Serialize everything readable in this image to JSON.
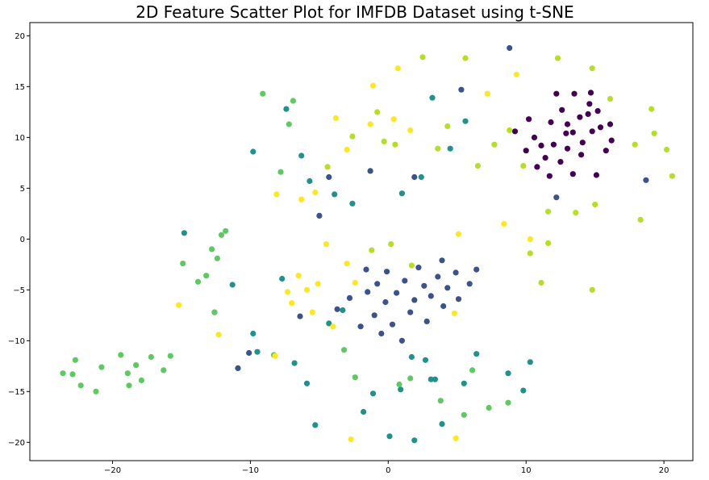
{
  "chart_data": {
    "type": "scatter",
    "title": "2D Feature Scatter Plot for IMFDB Dataset using t-SNE",
    "xlabel": "",
    "ylabel": "",
    "xlim": [
      -26,
      22.1
    ],
    "ylim": [
      -21.8,
      21.3
    ],
    "x_ticks": [
      -20,
      -10,
      0,
      10,
      20
    ],
    "y_ticks": [
      -20,
      -15,
      -10,
      -5,
      0,
      5,
      10,
      15,
      20
    ],
    "grid": false,
    "legend": "none",
    "series": [
      {
        "color": "#440154",
        "points": [
          [
            9.2,
            10.6
          ],
          [
            10.2,
            11.8
          ],
          [
            10.6,
            10.0
          ],
          [
            11.1,
            9.2
          ],
          [
            11.4,
            8.0
          ],
          [
            12.2,
            14.3
          ],
          [
            12.6,
            12.7
          ],
          [
            13.0,
            11.3
          ],
          [
            13.4,
            10.5
          ],
          [
            13.5,
            14.3
          ],
          [
            14.1,
            9.5
          ],
          [
            14.5,
            12.3
          ],
          [
            14.7,
            14.4
          ],
          [
            14.8,
            10.6
          ],
          [
            15.2,
            12.6
          ],
          [
            15.4,
            11.0
          ],
          [
            15.8,
            8.7
          ],
          [
            16.2,
            9.7
          ],
          [
            10.0,
            8.7
          ],
          [
            10.8,
            7.1
          ],
          [
            11.7,
            6.2
          ],
          [
            12.5,
            7.6
          ],
          [
            13.4,
            6.4
          ],
          [
            14.0,
            8.3
          ],
          [
            15.1,
            6.3
          ],
          [
            16.1,
            11.3
          ],
          [
            12.0,
            9.3
          ],
          [
            13.0,
            8.9
          ],
          [
            13.9,
            12.0
          ],
          [
            14.6,
            13.3
          ],
          [
            11.8,
            11.5
          ],
          [
            12.9,
            10.4
          ]
        ]
      },
      {
        "color": "#3b528b",
        "points": [
          [
            -1.5,
            -5.2
          ],
          [
            -0.8,
            -4.4
          ],
          [
            -0.2,
            -6.2
          ],
          [
            0.6,
            -5.3
          ],
          [
            1.2,
            -4.1
          ],
          [
            1.9,
            -6.0
          ],
          [
            2.6,
            -4.6
          ],
          [
            3.1,
            -5.6
          ],
          [
            3.6,
            -3.7
          ],
          [
            4.3,
            -4.8
          ],
          [
            -1.0,
            -7.5
          ],
          [
            0.3,
            -8.4
          ],
          [
            1.6,
            -7.2
          ],
          [
            2.8,
            -8.1
          ],
          [
            4.0,
            -6.6
          ],
          [
            5.1,
            -5.9
          ],
          [
            5.9,
            -4.4
          ],
          [
            -2.0,
            -8.6
          ],
          [
            -0.5,
            -9.3
          ],
          [
            1.0,
            -10.0
          ],
          [
            -2.8,
            -5.8
          ],
          [
            -0.1,
            -3.2
          ],
          [
            2.2,
            -2.8
          ],
          [
            3.9,
            -2.1
          ],
          [
            -4.3,
            6.1
          ],
          [
            -5.0,
            2.3
          ],
          [
            -1.3,
            6.7
          ],
          [
            1.9,
            6.1
          ],
          [
            5.3,
            14.7
          ],
          [
            12.2,
            4.1
          ],
          [
            18.7,
            5.8
          ],
          [
            8.8,
            18.8
          ],
          [
            -10.9,
            -12.7
          ],
          [
            -10.1,
            -11.2
          ],
          [
            -6.4,
            -7.6
          ],
          [
            -3.7,
            -6.9
          ],
          [
            -1.6,
            -3.0
          ],
          [
            4.9,
            -3.3
          ],
          [
            6.4,
            -3.0
          ]
        ]
      },
      {
        "color": "#21918c",
        "points": [
          [
            -9.5,
            -11.1
          ],
          [
            -7.7,
            -3.9
          ],
          [
            -5.9,
            -14.2
          ],
          [
            -4.3,
            -8.3
          ],
          [
            -3.3,
            -7.0
          ],
          [
            -1.1,
            -15.2
          ],
          [
            0.9,
            -14.8
          ],
          [
            1.7,
            -11.6
          ],
          [
            3.1,
            -13.8
          ],
          [
            3.9,
            -18.2
          ],
          [
            5.5,
            -14.2
          ],
          [
            6.4,
            -11.3
          ],
          [
            8.7,
            -13.2
          ],
          [
            9.8,
            -14.9
          ],
          [
            10.3,
            -12.1
          ],
          [
            -9.8,
            8.6
          ],
          [
            -7.4,
            12.8
          ],
          [
            -6.3,
            8.2
          ],
          [
            -5.7,
            5.7
          ],
          [
            -3.9,
            4.4
          ],
          [
            -2.6,
            3.5
          ],
          [
            1.0,
            4.5
          ],
          [
            2.4,
            6.1
          ],
          [
            3.2,
            13.9
          ],
          [
            4.5,
            8.9
          ],
          [
            5.6,
            11.6
          ],
          [
            -14.8,
            0.6
          ],
          [
            -12.6,
            -7.2
          ],
          [
            -11.3,
            -4.5
          ],
          [
            -6.8,
            -12.2
          ],
          [
            0.1,
            -19.4
          ],
          [
            1.9,
            -19.8
          ],
          [
            -1.8,
            -17.0
          ],
          [
            -5.3,
            -18.3
          ],
          [
            2.7,
            -11.9
          ],
          [
            3.4,
            -13.8
          ],
          [
            -9.8,
            -9.3
          ]
        ]
      },
      {
        "color": "#5ec962",
        "points": [
          [
            -18.3,
            -12.4
          ],
          [
            -17.9,
            -13.9
          ],
          [
            -17.2,
            -11.6
          ],
          [
            -16.3,
            -12.9
          ],
          [
            -15.8,
            -11.5
          ],
          [
            -21.2,
            -15.0
          ],
          [
            -22.3,
            -14.4
          ],
          [
            -22.9,
            -13.3
          ],
          [
            -23.6,
            -13.2
          ],
          [
            -20.8,
            -12.6
          ],
          [
            -19.4,
            -11.4
          ],
          [
            -18.8,
            -14.4
          ],
          [
            -14.9,
            -2.4
          ],
          [
            -13.8,
            -4.2
          ],
          [
            -12.8,
            -1.0
          ],
          [
            -12.1,
            0.4
          ],
          [
            -11.8,
            0.8
          ],
          [
            -12.4,
            -1.9
          ],
          [
            -13.2,
            -3.6
          ],
          [
            -8.3,
            -11.4
          ],
          [
            -12.6,
            -7.2
          ],
          [
            -7.2,
            11.3
          ],
          [
            -6.9,
            13.6
          ],
          [
            -7.8,
            6.6
          ],
          [
            -9.1,
            14.3
          ],
          [
            -3.2,
            -10.9
          ],
          [
            -2.4,
            -13.6
          ],
          [
            0.8,
            -14.3
          ],
          [
            1.6,
            -13.7
          ],
          [
            3.8,
            -15.9
          ],
          [
            5.5,
            -17.3
          ],
          [
            6.1,
            -12.9
          ],
          [
            7.3,
            -16.6
          ],
          [
            8.7,
            -16.1
          ],
          [
            -22.7,
            -11.9
          ],
          [
            -18.9,
            -13.2
          ]
        ]
      },
      {
        "color": "#b5de2b",
        "points": [
          [
            2.5,
            17.9
          ],
          [
            5.6,
            17.8
          ],
          [
            12.3,
            17.8
          ],
          [
            14.8,
            16.8
          ],
          [
            16.1,
            13.8
          ],
          [
            17.9,
            9.3
          ],
          [
            19.1,
            12.8
          ],
          [
            20.2,
            8.8
          ],
          [
            20.6,
            6.2
          ],
          [
            19.3,
            10.4
          ],
          [
            15.0,
            3.4
          ],
          [
            13.6,
            2.6
          ],
          [
            11.6,
            2.7
          ],
          [
            11.6,
            -0.4
          ],
          [
            10.3,
            -1.4
          ],
          [
            11.1,
            -4.3
          ],
          [
            14.8,
            -5.0
          ],
          [
            18.3,
            1.9
          ],
          [
            -0.8,
            12.5
          ],
          [
            -0.3,
            9.6
          ],
          [
            0.5,
            9.3
          ],
          [
            3.6,
            8.9
          ],
          [
            4.3,
            11.1
          ],
          [
            6.5,
            7.2
          ],
          [
            7.7,
            9.3
          ],
          [
            8.8,
            10.7
          ],
          [
            9.8,
            7.2
          ],
          [
            -1.2,
            -1.1
          ],
          [
            0.2,
            -0.5
          ],
          [
            1.7,
            -2.6
          ],
          [
            -4.4,
            7.1
          ],
          [
            -2.6,
            10.1
          ]
        ]
      },
      {
        "color": "#fde725",
        "points": [
          [
            -3.8,
            11.9
          ],
          [
            -3.0,
            8.8
          ],
          [
            -1.3,
            11.3
          ],
          [
            0.4,
            11.8
          ],
          [
            1.6,
            10.7
          ],
          [
            -5.3,
            4.6
          ],
          [
            -6.3,
            3.9
          ],
          [
            -8.1,
            4.4
          ],
          [
            -7.3,
            -5.2
          ],
          [
            -6.5,
            -3.6
          ],
          [
            -5.9,
            -5.0
          ],
          [
            -5.1,
            -4.4
          ],
          [
            -4.5,
            -0.5
          ],
          [
            -3.0,
            -2.4
          ],
          [
            -2.4,
            -4.3
          ],
          [
            -4.0,
            -8.6
          ],
          [
            -5.5,
            -7.2
          ],
          [
            -7.0,
            -6.3
          ],
          [
            -8.2,
            -11.5
          ],
          [
            -12.3,
            -9.4
          ],
          [
            -15.2,
            -6.5
          ],
          [
            4.8,
            -7.3
          ],
          [
            5.1,
            0.5
          ],
          [
            8.4,
            1.5
          ],
          [
            9.3,
            16.2
          ],
          [
            10.3,
            0.0
          ],
          [
            7.2,
            14.3
          ],
          [
            -2.7,
            -19.7
          ],
          [
            4.9,
            -19.6
          ],
          [
            -1.1,
            15.1
          ],
          [
            0.7,
            16.8
          ]
        ]
      }
    ]
  }
}
